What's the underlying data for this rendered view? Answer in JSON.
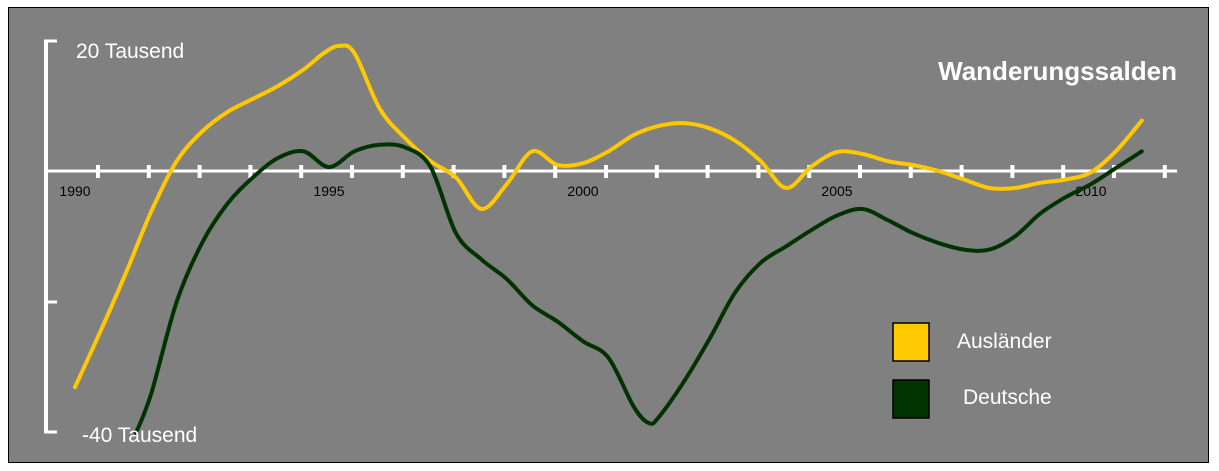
{
  "chart_data": {
    "type": "line",
    "title": "Wanderungssalden",
    "x_tick_labels": [
      "1990",
      "1995",
      "2000",
      "2005",
      "2010"
    ],
    "y_tick_labels": {
      "top": "20 Tausend",
      "bottom": "-40 Tausend"
    },
    "xlim": [
      1990,
      2011.5
    ],
    "ylim": [
      -40,
      20
    ],
    "grid": false,
    "legend_position": "bottom-right",
    "series": [
      {
        "name": "Ausländer",
        "color": "#ffc800",
        "x": [
          1990.0,
          1990.5,
          1991.0,
          1991.5,
          1992.0,
          1992.5,
          1993.0,
          1993.5,
          1994.0,
          1994.5,
          1994.9,
          1995.2,
          1995.5,
          1996.0,
          1996.5,
          1997.0,
          1997.5,
          1998.0,
          1998.5,
          1999.0,
          1999.5,
          2000.0,
          2000.5,
          2001.0,
          2001.5,
          2002.0,
          2002.5,
          2003.0,
          2003.5,
          2004.0,
          2004.5,
          2005.0,
          2005.5,
          2006.0,
          2006.5,
          2007.0,
          2007.5,
          2008.0,
          2008.5,
          2009.0,
          2009.5,
          2010.0,
          2010.5,
          2011.0
        ],
        "y": [
          -33.0,
          -24.5,
          -15.6,
          -6.2,
          1.5,
          6.0,
          9.0,
          11.0,
          13.0,
          15.5,
          18.0,
          19.1,
          18.0,
          9.5,
          5.0,
          1.5,
          -1.0,
          -5.8,
          -2.0,
          3.0,
          0.9,
          1.2,
          3.0,
          5.5,
          6.9,
          7.3,
          6.5,
          4.6,
          1.5,
          -2.6,
          0.7,
          2.9,
          2.6,
          1.5,
          0.9,
          0.0,
          -1.3,
          -2.6,
          -2.6,
          -1.8,
          -1.3,
          -0.2,
          3.1,
          7.7
        ]
      },
      {
        "name": "Deutsche",
        "color": "#003300",
        "x": [
          1991.2,
          1991.5,
          1992.0,
          1992.5,
          1993.0,
          1993.5,
          1994.0,
          1994.5,
          1995.0,
          1995.5,
          1996.0,
          1996.5,
          1997.0,
          1997.5,
          1998.0,
          1998.5,
          1999.0,
          1999.5,
          2000.0,
          2000.5,
          2001.0,
          2001.3,
          2001.5,
          2002.0,
          2002.5,
          2003.0,
          2003.5,
          2004.0,
          2004.5,
          2005.0,
          2005.5,
          2006.0,
          2006.5,
          2007.0,
          2007.5,
          2008.0,
          2008.5,
          2009.0,
          2009.5,
          2010.0,
          2010.5,
          2011.0
        ],
        "y": [
          -40.0,
          -34.0,
          -20.0,
          -11.0,
          -5.0,
          -1.0,
          2.0,
          3.0,
          0.6,
          3.0,
          4.0,
          3.6,
          0.6,
          -9.5,
          -13.5,
          -16.5,
          -20.5,
          -23.0,
          -26.0,
          -28.5,
          -36.0,
          -38.5,
          -37.5,
          -32.0,
          -25.5,
          -18.5,
          -14.0,
          -11.5,
          -9.0,
          -6.8,
          -5.8,
          -7.5,
          -9.5,
          -11.0,
          -12.0,
          -12.0,
          -10.0,
          -6.5,
          -4.0,
          -2.0,
          0.5,
          3.0
        ]
      }
    ]
  }
}
